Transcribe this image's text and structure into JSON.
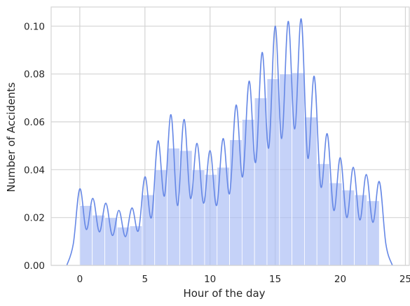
{
  "chart_data": {
    "type": "bar",
    "title": "",
    "xlabel": "Hour of the day",
    "ylabel": "Number of Accidents",
    "xlim": [
      -2.2,
      25.3
    ],
    "ylim": [
      0,
      0.108
    ],
    "xticks": [
      0,
      5,
      10,
      15,
      20,
      25
    ],
    "xtick_labels": [
      "0",
      "5",
      "10",
      "15",
      "20",
      "25"
    ],
    "yticks": [
      0.0,
      0.02,
      0.04,
      0.06,
      0.08,
      0.1
    ],
    "ytick_labels": [
      "0.00",
      "0.02",
      "0.04",
      "0.06",
      "0.08",
      "0.10"
    ],
    "grid": true,
    "legend": "none",
    "colors": {
      "bars": "#a9bdf5",
      "line": "#6688e6",
      "grid": "#d4d4d4",
      "background": "#ffffff"
    },
    "bins": {
      "edges": [
        0,
        0.958,
        1.917,
        2.875,
        3.833,
        4.792,
        5.75,
        6.708,
        7.667,
        8.625,
        9.583,
        10.542,
        11.5,
        12.458,
        13.417,
        14.375,
        15.333,
        16.292,
        17.25,
        18.208,
        19.167,
        20.125,
        21.083,
        22.042,
        23.0
      ],
      "values": [
        0.025,
        0.021,
        0.02,
        0.016,
        0.0165,
        0.0295,
        0.04,
        0.049,
        0.048,
        0.04,
        0.038,
        0.041,
        0.0525,
        0.061,
        0.07,
        0.078,
        0.08,
        0.0805,
        0.062,
        0.0425,
        0.0345,
        0.0315,
        0.0295,
        0.027
      ]
    },
    "kde": {
      "x_range": [
        -1,
        24
      ],
      "peaks": [
        {
          "x": 0,
          "y": 0.032
        },
        {
          "x": 1,
          "y": 0.028
        },
        {
          "x": 2,
          "y": 0.026
        },
        {
          "x": 3,
          "y": 0.023
        },
        {
          "x": 4,
          "y": 0.024
        },
        {
          "x": 5,
          "y": 0.037
        },
        {
          "x": 6,
          "y": 0.052
        },
        {
          "x": 7,
          "y": 0.063
        },
        {
          "x": 8,
          "y": 0.061
        },
        {
          "x": 9,
          "y": 0.051
        },
        {
          "x": 10,
          "y": 0.048
        },
        {
          "x": 11,
          "y": 0.053
        },
        {
          "x": 12,
          "y": 0.067
        },
        {
          "x": 13,
          "y": 0.077
        },
        {
          "x": 14,
          "y": 0.089
        },
        {
          "x": 15,
          "y": 0.1
        },
        {
          "x": 16,
          "y": 0.102
        },
        {
          "x": 17,
          "y": 0.103
        },
        {
          "x": 18,
          "y": 0.079
        },
        {
          "x": 19,
          "y": 0.055
        },
        {
          "x": 20,
          "y": 0.045
        },
        {
          "x": 21,
          "y": 0.041
        },
        {
          "x": 22,
          "y": 0.038
        },
        {
          "x": 23,
          "y": 0.035
        }
      ],
      "troughs": [
        {
          "x": 0.5,
          "y": 0.015
        },
        {
          "x": 1.5,
          "y": 0.014
        },
        {
          "x": 2.5,
          "y": 0.0125
        },
        {
          "x": 3.5,
          "y": 0.012
        },
        {
          "x": 4.5,
          "y": 0.0145
        },
        {
          "x": 5.5,
          "y": 0.02
        },
        {
          "x": 6.5,
          "y": 0.029
        },
        {
          "x": 7.5,
          "y": 0.025
        },
        {
          "x": 8.5,
          "y": 0.028
        },
        {
          "x": 9.5,
          "y": 0.026
        },
        {
          "x": 10.5,
          "y": 0.025
        },
        {
          "x": 11.5,
          "y": 0.03
        },
        {
          "x": 12.5,
          "y": 0.037
        },
        {
          "x": 13.5,
          "y": 0.043
        },
        {
          "x": 14.5,
          "y": 0.049
        },
        {
          "x": 15.5,
          "y": 0.053
        },
        {
          "x": 16.5,
          "y": 0.057
        },
        {
          "x": 17.5,
          "y": 0.045
        },
        {
          "x": 18.5,
          "y": 0.033
        },
        {
          "x": 19.5,
          "y": 0.023
        },
        {
          "x": 20.5,
          "y": 0.02
        },
        {
          "x": 21.5,
          "y": 0.019
        },
        {
          "x": 22.5,
          "y": 0.018
        }
      ]
    }
  }
}
